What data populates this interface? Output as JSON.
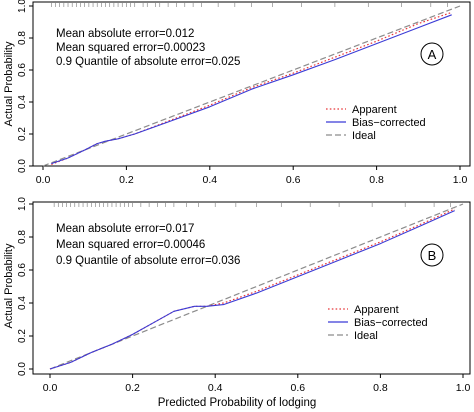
{
  "figure": {
    "shared_xlabel": "Predicted Probability of lodging"
  },
  "chart_data": [
    {
      "type": "line",
      "panel_label": "A",
      "ylabel": "Actual Probability",
      "xlim": [
        0.0,
        1.0
      ],
      "ylim": [
        0.0,
        1.0
      ],
      "x_ticks": [
        "0.0",
        "0.2",
        "0.4",
        "0.6",
        "0.8",
        "1.0"
      ],
      "y_ticks": [
        "0.0",
        "0.2",
        "0.4",
        "0.6",
        "0.8",
        "1.0"
      ],
      "grid": false,
      "stats": [
        "Mean absolute error=0.012",
        "Mean squared error=0.00023",
        "0.9 Quantile of absolute error=0.025"
      ],
      "legend": {
        "position": "right-center",
        "entries": [
          "Apparent",
          "Bias−corrected",
          "Ideal"
        ]
      },
      "series": [
        {
          "name": "Apparent",
          "style": "dotted",
          "color": "#e8383b",
          "x": [
            0.02,
            0.06,
            0.1,
            0.13,
            0.15,
            0.18,
            0.22,
            0.3,
            0.4,
            0.5,
            0.6,
            0.7,
            0.8,
            0.9,
            0.98
          ],
          "y": [
            0.01,
            0.05,
            0.1,
            0.14,
            0.155,
            0.17,
            0.2,
            0.28,
            0.38,
            0.49,
            0.58,
            0.68,
            0.78,
            0.89,
            0.96
          ]
        },
        {
          "name": "Bias−corrected",
          "style": "solid",
          "color": "#3b3bd6",
          "x": [
            0.02,
            0.06,
            0.1,
            0.13,
            0.15,
            0.18,
            0.22,
            0.3,
            0.4,
            0.5,
            0.6,
            0.7,
            0.8,
            0.9,
            0.98
          ],
          "y": [
            0.015,
            0.05,
            0.1,
            0.14,
            0.155,
            0.17,
            0.2,
            0.275,
            0.37,
            0.48,
            0.57,
            0.665,
            0.765,
            0.865,
            0.945
          ]
        },
        {
          "name": "Ideal",
          "style": "dashed",
          "color": "#8c8c8c",
          "x": [
            0.0,
            1.0
          ],
          "y": [
            0.0,
            1.0
          ]
        }
      ],
      "rug_x": [
        0.02,
        0.03,
        0.04,
        0.05,
        0.06,
        0.07,
        0.08,
        0.09,
        0.1,
        0.11,
        0.12,
        0.13,
        0.14,
        0.15,
        0.16,
        0.17,
        0.18,
        0.19,
        0.2,
        0.21,
        0.22,
        0.24,
        0.25,
        0.27,
        0.28,
        0.3,
        0.32,
        0.34,
        0.36,
        0.38,
        0.42,
        0.46,
        0.5,
        0.55,
        0.62,
        0.7,
        0.78,
        0.86,
        0.93,
        0.97
      ]
    },
    {
      "type": "line",
      "panel_label": "B",
      "ylabel": "Actual Probability",
      "xlim": [
        0.0,
        1.0
      ],
      "ylim": [
        0.0,
        1.0
      ],
      "x_ticks": [
        "0.0",
        "0.2",
        "0.4",
        "0.6",
        "0.8",
        "1.0"
      ],
      "y_ticks": [
        "0.0",
        "0.2",
        "0.4",
        "0.6",
        "0.8",
        "1.0"
      ],
      "grid": false,
      "stats": [
        "Mean absolute error=0.017",
        "Mean squared error=0.00046",
        "0.9 Quantile of absolute error=0.036"
      ],
      "legend": {
        "position": "right-center",
        "entries": [
          "Apparent",
          "Bias−corrected",
          "Ideal"
        ]
      },
      "series": [
        {
          "name": "Apparent",
          "style": "dotted",
          "color": "#e8383b",
          "x": [
            0.0,
            0.05,
            0.1,
            0.15,
            0.2,
            0.25,
            0.3,
            0.35,
            0.38,
            0.42,
            0.5,
            0.6,
            0.7,
            0.8,
            0.9,
            0.98
          ],
          "y": [
            0.0,
            0.04,
            0.1,
            0.15,
            0.21,
            0.28,
            0.35,
            0.38,
            0.38,
            0.4,
            0.47,
            0.57,
            0.67,
            0.77,
            0.88,
            0.97
          ]
        },
        {
          "name": "Bias−corrected",
          "style": "solid",
          "color": "#3b3bd6",
          "x": [
            0.0,
            0.05,
            0.1,
            0.15,
            0.2,
            0.25,
            0.3,
            0.35,
            0.38,
            0.42,
            0.5,
            0.6,
            0.7,
            0.8,
            0.9,
            0.98
          ],
          "y": [
            0.0,
            0.04,
            0.1,
            0.15,
            0.21,
            0.28,
            0.35,
            0.38,
            0.38,
            0.39,
            0.46,
            0.56,
            0.66,
            0.76,
            0.87,
            0.96
          ]
        },
        {
          "name": "Ideal",
          "style": "dashed",
          "color": "#8c8c8c",
          "x": [
            0.0,
            1.0
          ],
          "y": [
            0.0,
            1.0
          ]
        }
      ],
      "rug_x": [
        0.01,
        0.02,
        0.03,
        0.04,
        0.05,
        0.06,
        0.07,
        0.08,
        0.09,
        0.1,
        0.11,
        0.12,
        0.13,
        0.14,
        0.15,
        0.16,
        0.17,
        0.18,
        0.19,
        0.2,
        0.22,
        0.24,
        0.26,
        0.28,
        0.3,
        0.33,
        0.36,
        0.4,
        0.45,
        0.5,
        0.56,
        0.63,
        0.7,
        0.78,
        0.86,
        0.93,
        0.97
      ]
    }
  ]
}
